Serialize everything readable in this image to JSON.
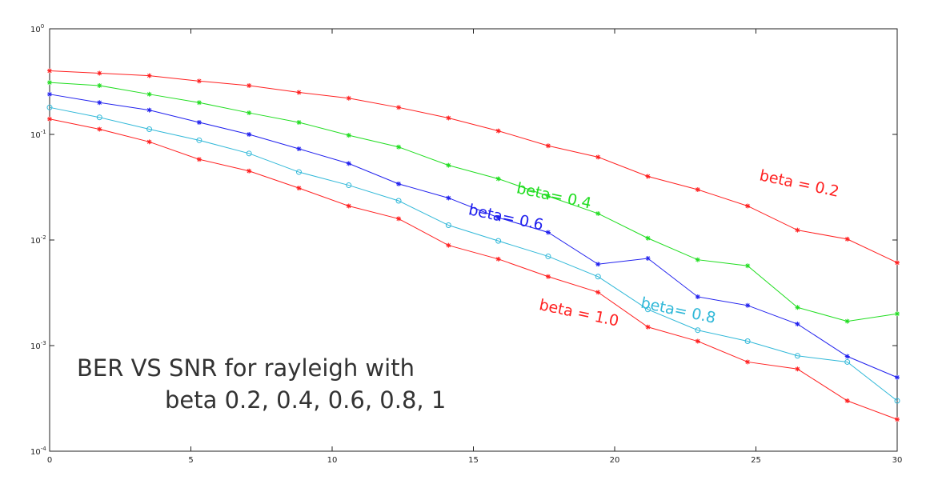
{
  "chart_data": {
    "type": "line",
    "title_lines": [
      "BER VS SNR for rayleigh with",
      "beta 0.2, 0.4,  0.6, 0.8, 1"
    ],
    "xlabel": "",
    "ylabel": "",
    "xlim": [
      0,
      30
    ],
    "ylim": [
      0.0001,
      1
    ],
    "yscale": "log",
    "grid": false,
    "x_ticks": [
      0,
      5,
      10,
      15,
      20,
      25,
      30
    ],
    "y_ticks": [
      {
        "base": "10",
        "exp": "0",
        "value": 1
      },
      {
        "base": "10",
        "exp": "-1",
        "value": 0.1
      },
      {
        "base": "10",
        "exp": "-2",
        "value": 0.01
      },
      {
        "base": "10",
        "exp": "-3",
        "value": 0.001
      },
      {
        "base": "10",
        "exp": "-4",
        "value": 0.0001
      }
    ],
    "x": [
      0,
      1.765,
      3.529,
      5.294,
      7.059,
      8.824,
      10.588,
      12.353,
      14.118,
      15.882,
      17.647,
      19.412,
      21.176,
      22.941,
      24.706,
      26.471,
      28.235,
      30
    ],
    "series": [
      {
        "label": "beta = 0.2",
        "color": "#ff2020",
        "marker": "star",
        "values": [
          0.4,
          0.38,
          0.36,
          0.32,
          0.29,
          0.25,
          0.22,
          0.18,
          0.143,
          0.108,
          0.078,
          0.061,
          0.04,
          0.03,
          0.021,
          0.0124,
          0.0102,
          0.0061
        ],
        "label_pos": {
          "x": 25.1,
          "y": 0.037,
          "angle": 12
        }
      },
      {
        "label": "beta= 0.4",
        "color": "#20dd20",
        "marker": "star",
        "values": [
          0.31,
          0.29,
          0.24,
          0.2,
          0.16,
          0.13,
          0.098,
          0.076,
          0.051,
          0.038,
          0.026,
          0.0178,
          0.0104,
          0.0065,
          0.0057,
          0.0023,
          0.0017,
          0.002
        ],
        "label_pos": {
          "x": 16.5,
          "y": 0.028,
          "angle": 12
        }
      },
      {
        "label": "beta= 0.6",
        "color": "#2020ee",
        "marker": "star",
        "values": [
          0.24,
          0.2,
          0.17,
          0.13,
          0.1,
          0.073,
          0.053,
          0.034,
          0.025,
          0.0163,
          0.0118,
          0.0059,
          0.0067,
          0.0029,
          0.0024,
          0.0016,
          0.00079,
          0.0005
        ],
        "label_pos": {
          "x": 14.8,
          "y": 0.0175,
          "angle": 12
        }
      },
      {
        "label": "beta= 0.8",
        "color": "#30b8d8",
        "marker": "circle",
        "values": [
          0.18,
          0.145,
          0.112,
          0.088,
          0.066,
          0.044,
          0.033,
          0.0235,
          0.0138,
          0.0098,
          0.007,
          0.0045,
          0.0022,
          0.0014,
          0.0011,
          0.0008,
          0.0007,
          0.0003
        ],
        "label_pos": {
          "x": 20.9,
          "y": 0.0023,
          "angle": 12
        }
      },
      {
        "label": "beta = 1.0",
        "color": "#ff2020",
        "marker": "star",
        "values": [
          0.14,
          0.112,
          0.085,
          0.058,
          0.045,
          0.031,
          0.021,
          0.0159,
          0.0089,
          0.0066,
          0.0045,
          0.0032,
          0.0015,
          0.0011,
          0.0007,
          0.0006,
          0.0003,
          0.0002
        ],
        "label_pos": {
          "x": 17.3,
          "y": 0.0022,
          "angle": 12
        }
      }
    ]
  }
}
